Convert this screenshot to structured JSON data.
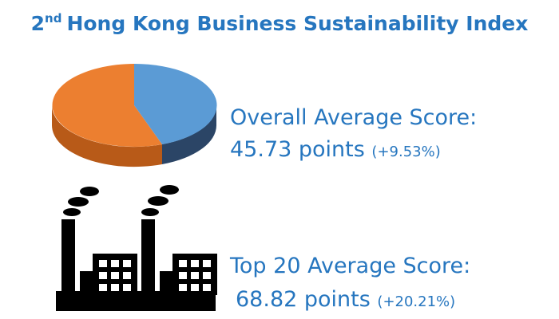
{
  "title": {
    "number": "2",
    "suffix": "nd",
    "text": "Hong Kong Business Sustainability Index"
  },
  "stats": [
    {
      "label": "Overall Average Score:",
      "value": 45.73,
      "unit": "points",
      "change": "(+9.53%)"
    },
    {
      "label": "Top 20 Average Score:",
      "value": 68.82,
      "unit": "points",
      "change": "(+20.21%)"
    }
  ]
}
